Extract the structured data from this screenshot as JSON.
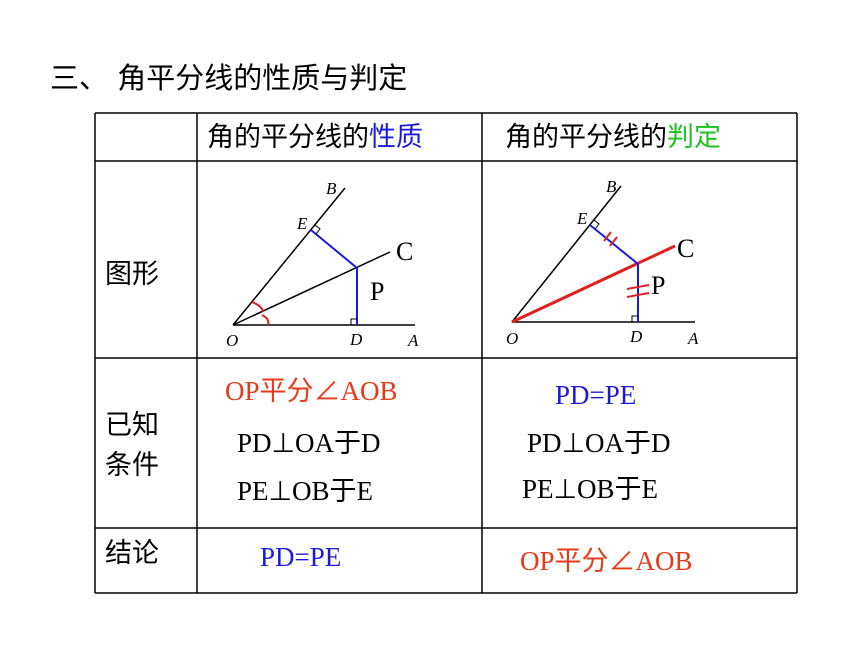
{
  "title": "三、 角平分线的性质与判定",
  "table": {
    "header": [
      {
        "prefix": "角的平分线的",
        "emphasis": "性质"
      },
      {
        "prefix": "角的平分线的",
        "emphasis": "判定"
      }
    ],
    "figure_row": {
      "label": "图形",
      "left_labels": [
        "B",
        "E",
        "C",
        "P",
        "O",
        "D",
        "A"
      ],
      "right_labels": [
        "B",
        "E",
        "C",
        "P",
        "O",
        "D",
        "A"
      ]
    },
    "given_row": {
      "label": [
        "已知",
        "条件"
      ],
      "left": [
        "OP平分∠AOB",
        "PD⊥OA于D",
        "PE⊥OB于E"
      ],
      "right": [
        "PD=PE",
        "PD⊥OA于D",
        "PE⊥OB于E"
      ]
    },
    "conclusion_row": {
      "label": "结论",
      "left": "PD=PE",
      "right": "OP平分∠AOB"
    }
  }
}
